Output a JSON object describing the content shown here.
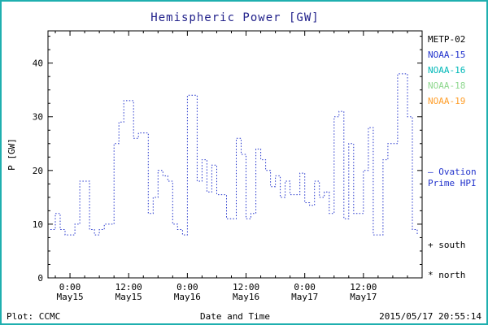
{
  "page": {
    "frame_color": "#1FAFAF",
    "background": "#FFFFFF"
  },
  "title": {
    "text": "Hemispheric Power [GW]",
    "color": "#22228B"
  },
  "legend": {
    "satellites": [
      {
        "label": "METP-02",
        "color": "#000000"
      },
      {
        "label": "NOAA-15",
        "color": "#2233CC"
      },
      {
        "label": "NOAA-16",
        "color": "#00B8B8"
      },
      {
        "label": "NOAA-18",
        "color": "#8FD88F"
      },
      {
        "label": "NOAA-19",
        "color": "#FF9E2A"
      }
    ],
    "ovation_line1": "— Ovation",
    "ovation_line2": "Prime HPI",
    "ovation_color": "#2233CC",
    "south_marker": "+ south",
    "north_marker": "* north"
  },
  "footer": {
    "plot_credit": "Plot: CCMC",
    "timestamp": "2015/05/17 20:55:14"
  },
  "chart_data": {
    "type": "line",
    "title": "Hemispheric Power [GW]",
    "xlabel": "Date and Time",
    "ylabel": "P [GW]",
    "ylim": [
      0,
      46
    ],
    "yticks": [
      0,
      10,
      20,
      30,
      40
    ],
    "y_minor_step": 2.5,
    "xlim_hours": [
      -4.5,
      72
    ],
    "x_minor_step_hours": 3,
    "xticks": [
      {
        "hour": 0,
        "line1": "0:00",
        "line2": "May15"
      },
      {
        "hour": 12,
        "line1": "12:00",
        "line2": "May15"
      },
      {
        "hour": 24,
        "line1": "0:00",
        "line2": "May16"
      },
      {
        "hour": 36,
        "line1": "12:00",
        "line2": "May16"
      },
      {
        "hour": 48,
        "line1": "0:00",
        "line2": "May17"
      },
      {
        "hour": 60,
        "line1": "12:00",
        "line2": "May17"
      }
    ],
    "grid": false,
    "legend_position": "right",
    "line_color": "#2233CC",
    "line_style": "dotted",
    "step_mode": "after",
    "series": [
      {
        "name": "Ovation Prime HPI",
        "x_hours": [
          -4,
          -3,
          -2,
          -1,
          0,
          1,
          2,
          3,
          4,
          5,
          6,
          7,
          8,
          9,
          10,
          11,
          12,
          13,
          14,
          15,
          16,
          17,
          18,
          19,
          20,
          21,
          22,
          23,
          24,
          25,
          26,
          27,
          28,
          29,
          30,
          31,
          32,
          33,
          34,
          35,
          36,
          37,
          38,
          39,
          40,
          41,
          42,
          43,
          44,
          45,
          46,
          47,
          48,
          49,
          50,
          51,
          52,
          53,
          54,
          55,
          56,
          57,
          58,
          59,
          60,
          61,
          62,
          63,
          64,
          65,
          66,
          67,
          68,
          69,
          70,
          71
        ],
        "values": [
          9,
          12,
          9,
          8,
          8,
          10,
          18,
          18,
          9,
          8,
          9,
          10,
          10,
          25,
          29,
          33,
          33,
          26,
          27,
          27,
          12,
          15,
          20,
          19,
          18,
          10,
          9,
          8,
          34,
          34,
          18,
          22,
          16,
          21,
          15.5,
          15.5,
          11,
          11,
          26,
          23,
          11,
          12,
          24,
          22,
          20,
          17,
          19,
          15,
          18,
          15.5,
          15.5,
          19.5,
          14,
          13.5,
          18,
          15,
          16,
          12,
          30,
          31,
          11,
          25,
          12,
          12,
          20,
          28,
          8,
          8,
          22,
          25,
          25,
          38,
          38,
          30,
          9,
          8
        ]
      }
    ]
  }
}
